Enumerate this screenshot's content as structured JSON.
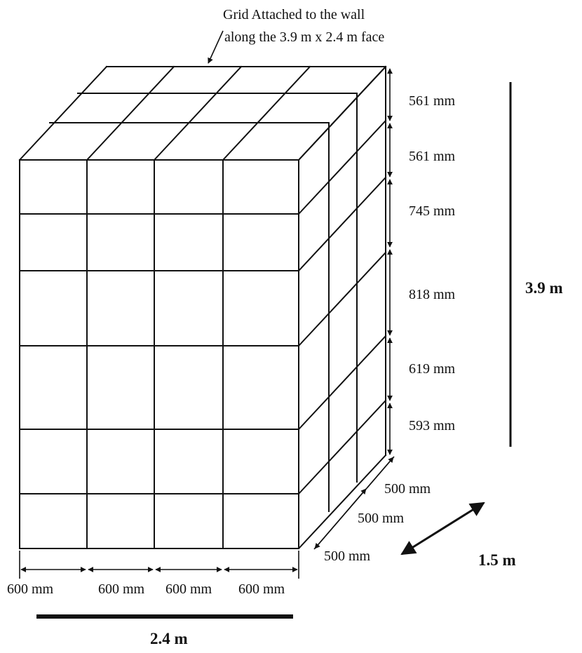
{
  "annotation": {
    "line1": "Grid Attached to the wall",
    "line2": "along the 3.9 m x 2.4 m face"
  },
  "height_segments": [
    "561 mm",
    "561 mm",
    "745 mm",
    "818 mm",
    "619 mm",
    "593 mm"
  ],
  "depth_segments": [
    "500 mm",
    "500 mm",
    "500 mm"
  ],
  "width_segments": [
    "600 mm",
    "600 mm",
    "600 mm",
    "600 mm"
  ],
  "totals": {
    "height": "3.9 m",
    "depth": "1.5 m",
    "width": "2.4 m"
  }
}
